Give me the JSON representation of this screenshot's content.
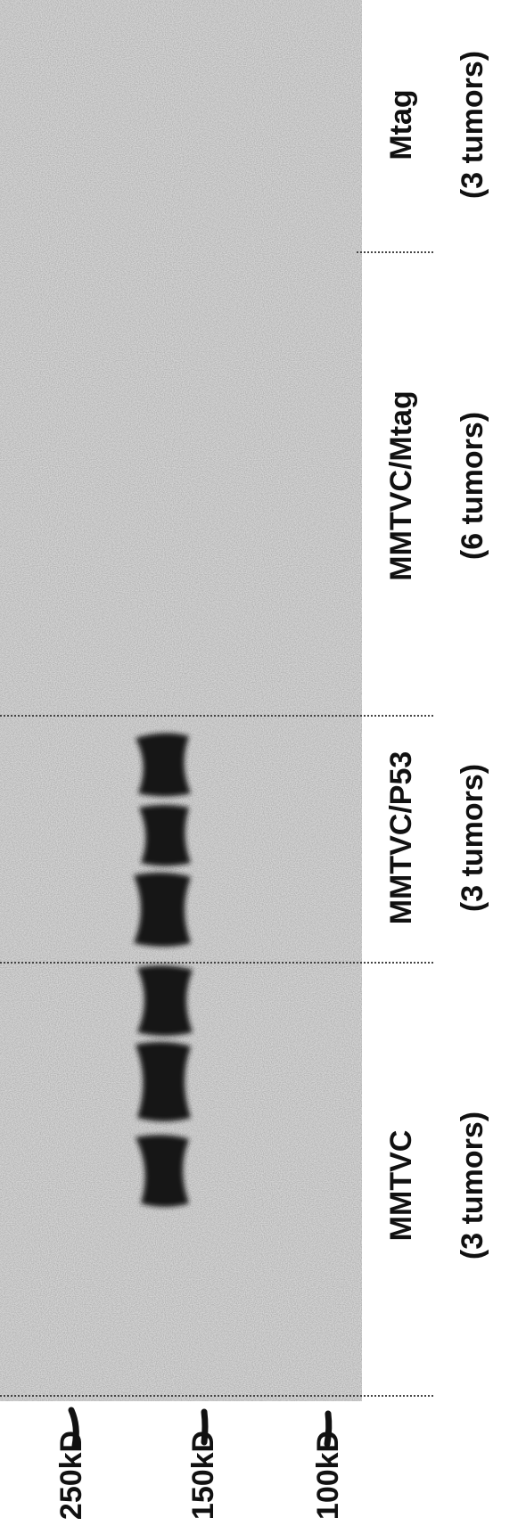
{
  "lanes": [
    {
      "label": "MMTVC",
      "count": "(3 tumors)"
    },
    {
      "label": "MMTVC/P53",
      "count": "(3 tumors)"
    },
    {
      "label": "MMTVC/Mtag",
      "count": "(6 tumors)"
    },
    {
      "label": "Mtag",
      "count": "(3 tumors)"
    }
  ],
  "markers": [
    "250kD",
    "150kD",
    "100kD"
  ]
}
